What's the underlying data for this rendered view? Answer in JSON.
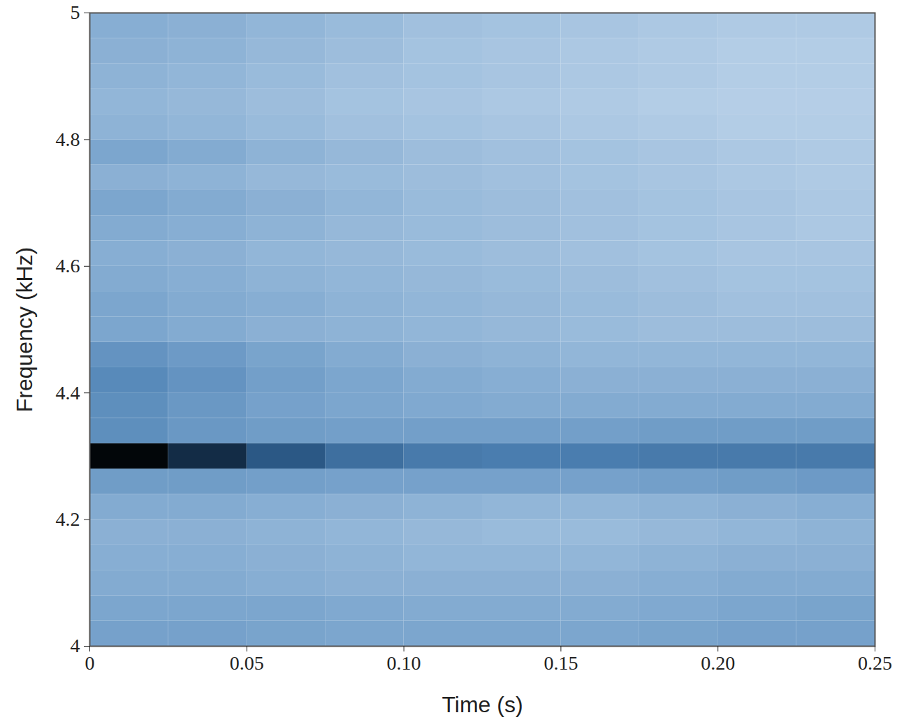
{
  "chart_data": {
    "type": "heatmap",
    "x_label": "Time (s)",
    "y_label": "Frequency (kHz)",
    "xlim": [
      0,
      0.25
    ],
    "ylim": [
      4,
      5
    ],
    "xticks": [
      0,
      0.05,
      {
        "value": 0.1,
        "label": "0.10"
      },
      0.15,
      {
        "value": 0.2,
        "label": "0.20"
      },
      0.25
    ],
    "yticks": [
      4,
      4.2,
      4.4,
      4.6,
      4.8,
      5
    ],
    "time_bins": [
      0,
      0.025,
      0.05,
      0.075,
      0.1,
      0.125,
      0.15,
      0.175,
      0.2,
      0.225,
      0.25
    ],
    "frequency_bins": [
      4,
      4.04,
      4.08,
      4.12,
      4.16,
      4.2,
      4.24,
      4.28,
      4.32,
      4.36,
      4.4,
      4.44,
      4.48,
      4.52,
      4.56,
      4.6,
      4.64,
      4.68,
      4.72,
      4.76,
      4.8,
      4.84,
      4.88,
      4.92,
      4.96,
      5
    ],
    "clim": [
      0,
      1
    ],
    "cells": [
      [
        0.42,
        0.42,
        0.41,
        0.4,
        0.4,
        0.4,
        0.4,
        0.41,
        0.42,
        0.42
      ],
      [
        0.4,
        0.4,
        0.4,
        0.39,
        0.38,
        0.38,
        0.38,
        0.39,
        0.4,
        0.41
      ],
      [
        0.38,
        0.38,
        0.37,
        0.36,
        0.36,
        0.36,
        0.36,
        0.37,
        0.38,
        0.38
      ],
      [
        0.37,
        0.37,
        0.36,
        0.35,
        0.34,
        0.34,
        0.34,
        0.35,
        0.36,
        0.36
      ],
      [
        0.36,
        0.36,
        0.35,
        0.34,
        0.33,
        0.32,
        0.32,
        0.33,
        0.34,
        0.35
      ],
      [
        0.38,
        0.38,
        0.37,
        0.36,
        0.35,
        0.34,
        0.34,
        0.35,
        0.36,
        0.37
      ],
      [
        0.44,
        0.44,
        0.43,
        0.42,
        0.42,
        0.42,
        0.42,
        0.43,
        0.44,
        0.45
      ],
      [
        0.98,
        0.85,
        0.7,
        0.62,
        0.58,
        0.57,
        0.57,
        0.58,
        0.58,
        0.58
      ],
      [
        0.5,
        0.46,
        0.44,
        0.43,
        0.43,
        0.43,
        0.43,
        0.44,
        0.44,
        0.44
      ],
      [
        0.5,
        0.46,
        0.42,
        0.4,
        0.39,
        0.38,
        0.38,
        0.38,
        0.38,
        0.38
      ],
      [
        0.52,
        0.48,
        0.43,
        0.4,
        0.38,
        0.37,
        0.36,
        0.36,
        0.36,
        0.36
      ],
      [
        0.48,
        0.45,
        0.41,
        0.38,
        0.36,
        0.35,
        0.34,
        0.34,
        0.34,
        0.34
      ],
      [
        0.4,
        0.38,
        0.36,
        0.35,
        0.34,
        0.33,
        0.32,
        0.31,
        0.31,
        0.31
      ],
      [
        0.4,
        0.38,
        0.37,
        0.35,
        0.34,
        0.33,
        0.32,
        0.31,
        0.3,
        0.3
      ],
      [
        0.38,
        0.37,
        0.35,
        0.34,
        0.33,
        0.32,
        0.31,
        0.3,
        0.29,
        0.29
      ],
      [
        0.37,
        0.36,
        0.34,
        0.33,
        0.32,
        0.31,
        0.3,
        0.29,
        0.28,
        0.28
      ],
      [
        0.38,
        0.37,
        0.35,
        0.33,
        0.32,
        0.31,
        0.3,
        0.29,
        0.28,
        0.27
      ],
      [
        0.4,
        0.38,
        0.36,
        0.34,
        0.32,
        0.31,
        0.3,
        0.29,
        0.28,
        0.27
      ],
      [
        0.36,
        0.35,
        0.33,
        0.32,
        0.31,
        0.3,
        0.29,
        0.28,
        0.27,
        0.26
      ],
      [
        0.4,
        0.38,
        0.35,
        0.33,
        0.31,
        0.3,
        0.29,
        0.28,
        0.27,
        0.26
      ],
      [
        0.35,
        0.34,
        0.32,
        0.3,
        0.29,
        0.28,
        0.27,
        0.26,
        0.25,
        0.25
      ],
      [
        0.34,
        0.33,
        0.31,
        0.29,
        0.28,
        0.27,
        0.26,
        0.25,
        0.24,
        0.24
      ],
      [
        0.35,
        0.34,
        0.32,
        0.3,
        0.29,
        0.28,
        0.27,
        0.26,
        0.25,
        0.25
      ],
      [
        0.36,
        0.35,
        0.33,
        0.31,
        0.29,
        0.28,
        0.27,
        0.26,
        0.25,
        0.25
      ],
      [
        0.37,
        0.36,
        0.34,
        0.32,
        0.3,
        0.29,
        0.28,
        0.27,
        0.26,
        0.26
      ]
    ]
  }
}
